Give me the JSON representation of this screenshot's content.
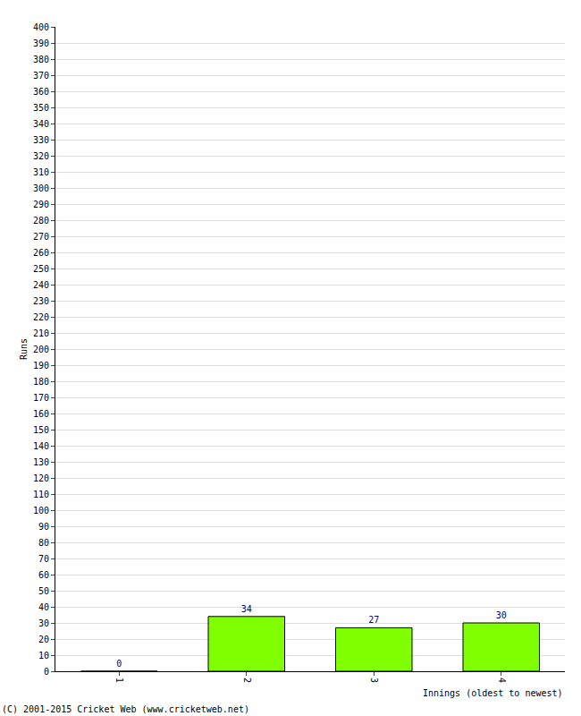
{
  "chart_data": {
    "type": "bar",
    "x_label": "Innings (oldest to newest)",
    "y_label": "Runs",
    "categories": [
      "1",
      "2",
      "3",
      "4"
    ],
    "values": [
      0,
      34,
      27,
      30
    ],
    "color": "#80ff00",
    "data_labels": true,
    "ylim": [
      0,
      400
    ],
    "yticks": [
      0,
      10,
      20,
      30,
      40,
      50,
      60,
      70,
      80,
      90,
      100,
      110,
      120,
      130,
      140,
      150,
      160,
      170,
      180,
      190,
      200,
      210,
      220,
      230,
      240,
      250,
      260,
      270,
      280,
      290,
      300,
      310,
      320,
      330,
      340,
      350,
      360,
      370,
      380,
      390,
      400
    ],
    "grid": true,
    "annotations": [
      {
        "text": "(C) 2001-2015 Cricket Web (www.cricketweb.net)"
      }
    ]
  }
}
